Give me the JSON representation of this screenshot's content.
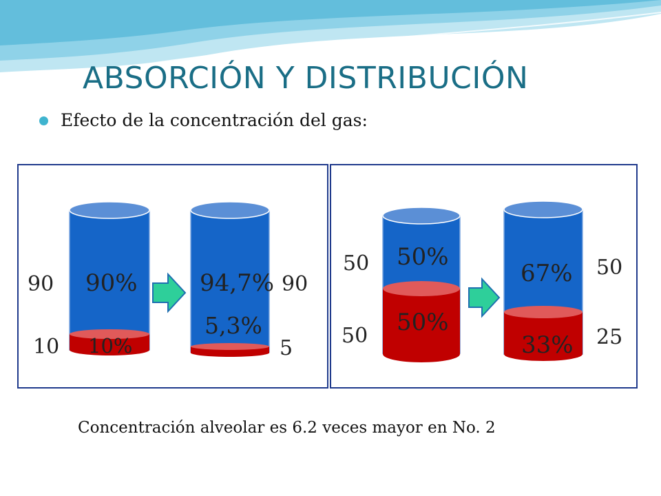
{
  "slide": {
    "title": "ABSORCIÓN Y DISTRIBUCIÓN",
    "bullet": "Efecto de la concentración del gas:",
    "footer": "Concentración alveolar es 6.2 veces mayor en No. 2"
  },
  "colors": {
    "title": "#1a6e86",
    "gas_blue": "#1565c8",
    "gas_red": "#c00000",
    "arrow": "#2ecf9a",
    "border": "#1f3a8c"
  },
  "example_1": {
    "left_outside_top": "90",
    "left_outside_bottom": "10",
    "cyl1_top_pct": "90%",
    "cyl1_bottom_pct": "10%",
    "cyl2_top_pct": "94,7%",
    "cyl2_bottom_pct": "5,3%",
    "right_outside_top": "90",
    "right_outside_bottom": "5"
  },
  "example_2": {
    "left_outside_top": "50",
    "left_outside_bottom": "50",
    "cyl1_top_pct": "50%",
    "cyl1_bottom_pct": "50%",
    "cyl2_top_pct": "67%",
    "cyl2_bottom_pct": "33%",
    "right_outside_top": "50",
    "right_outside_bottom": "25"
  }
}
